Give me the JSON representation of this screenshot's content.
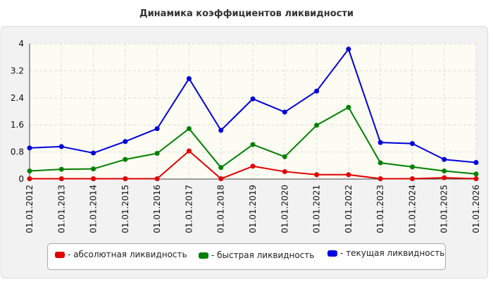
{
  "chart_data": {
    "type": "line",
    "title": "Динамика коэффициентов ликвидности",
    "categories": [
      "01.01.2012",
      "01.01.2013",
      "01.01.2014",
      "01.01.2015",
      "01.01.2016",
      "01.01.2017",
      "01.01.2018",
      "01.01.2019",
      "01.01.2020",
      "01.01.2021",
      "01.01.2022",
      "01.01.2023",
      "01.01.2024",
      "01.01.2025",
      "01.01.2026"
    ],
    "ylim": [
      0,
      4
    ],
    "yticks": [
      "0",
      "0.8",
      "1.6",
      "2.4",
      "3.2",
      "4"
    ],
    "grid": true,
    "legend_position": "bottom",
    "series": [
      {
        "name": "- абсолютная ликвидность",
        "color": "#e00000",
        "values": [
          0.01,
          0.01,
          0.01,
          0.01,
          0.01,
          0.83,
          0.01,
          0.38,
          0.22,
          0.13,
          0.13,
          0.01,
          0.01,
          0.04,
          0.01
        ]
      },
      {
        "name": "- быстрая ликвидность",
        "color": "#008000",
        "values": [
          0.24,
          0.29,
          0.3,
          0.58,
          0.76,
          1.49,
          0.34,
          1.02,
          0.66,
          1.59,
          2.12,
          0.48,
          0.36,
          0.24,
          0.15
        ]
      },
      {
        "name": "- текущая ликвидность",
        "color": "#0000dd",
        "values": [
          0.92,
          0.96,
          0.77,
          1.11,
          1.49,
          2.97,
          1.44,
          2.37,
          1.98,
          2.6,
          3.84,
          1.08,
          1.05,
          0.58,
          0.49
        ]
      }
    ]
  }
}
